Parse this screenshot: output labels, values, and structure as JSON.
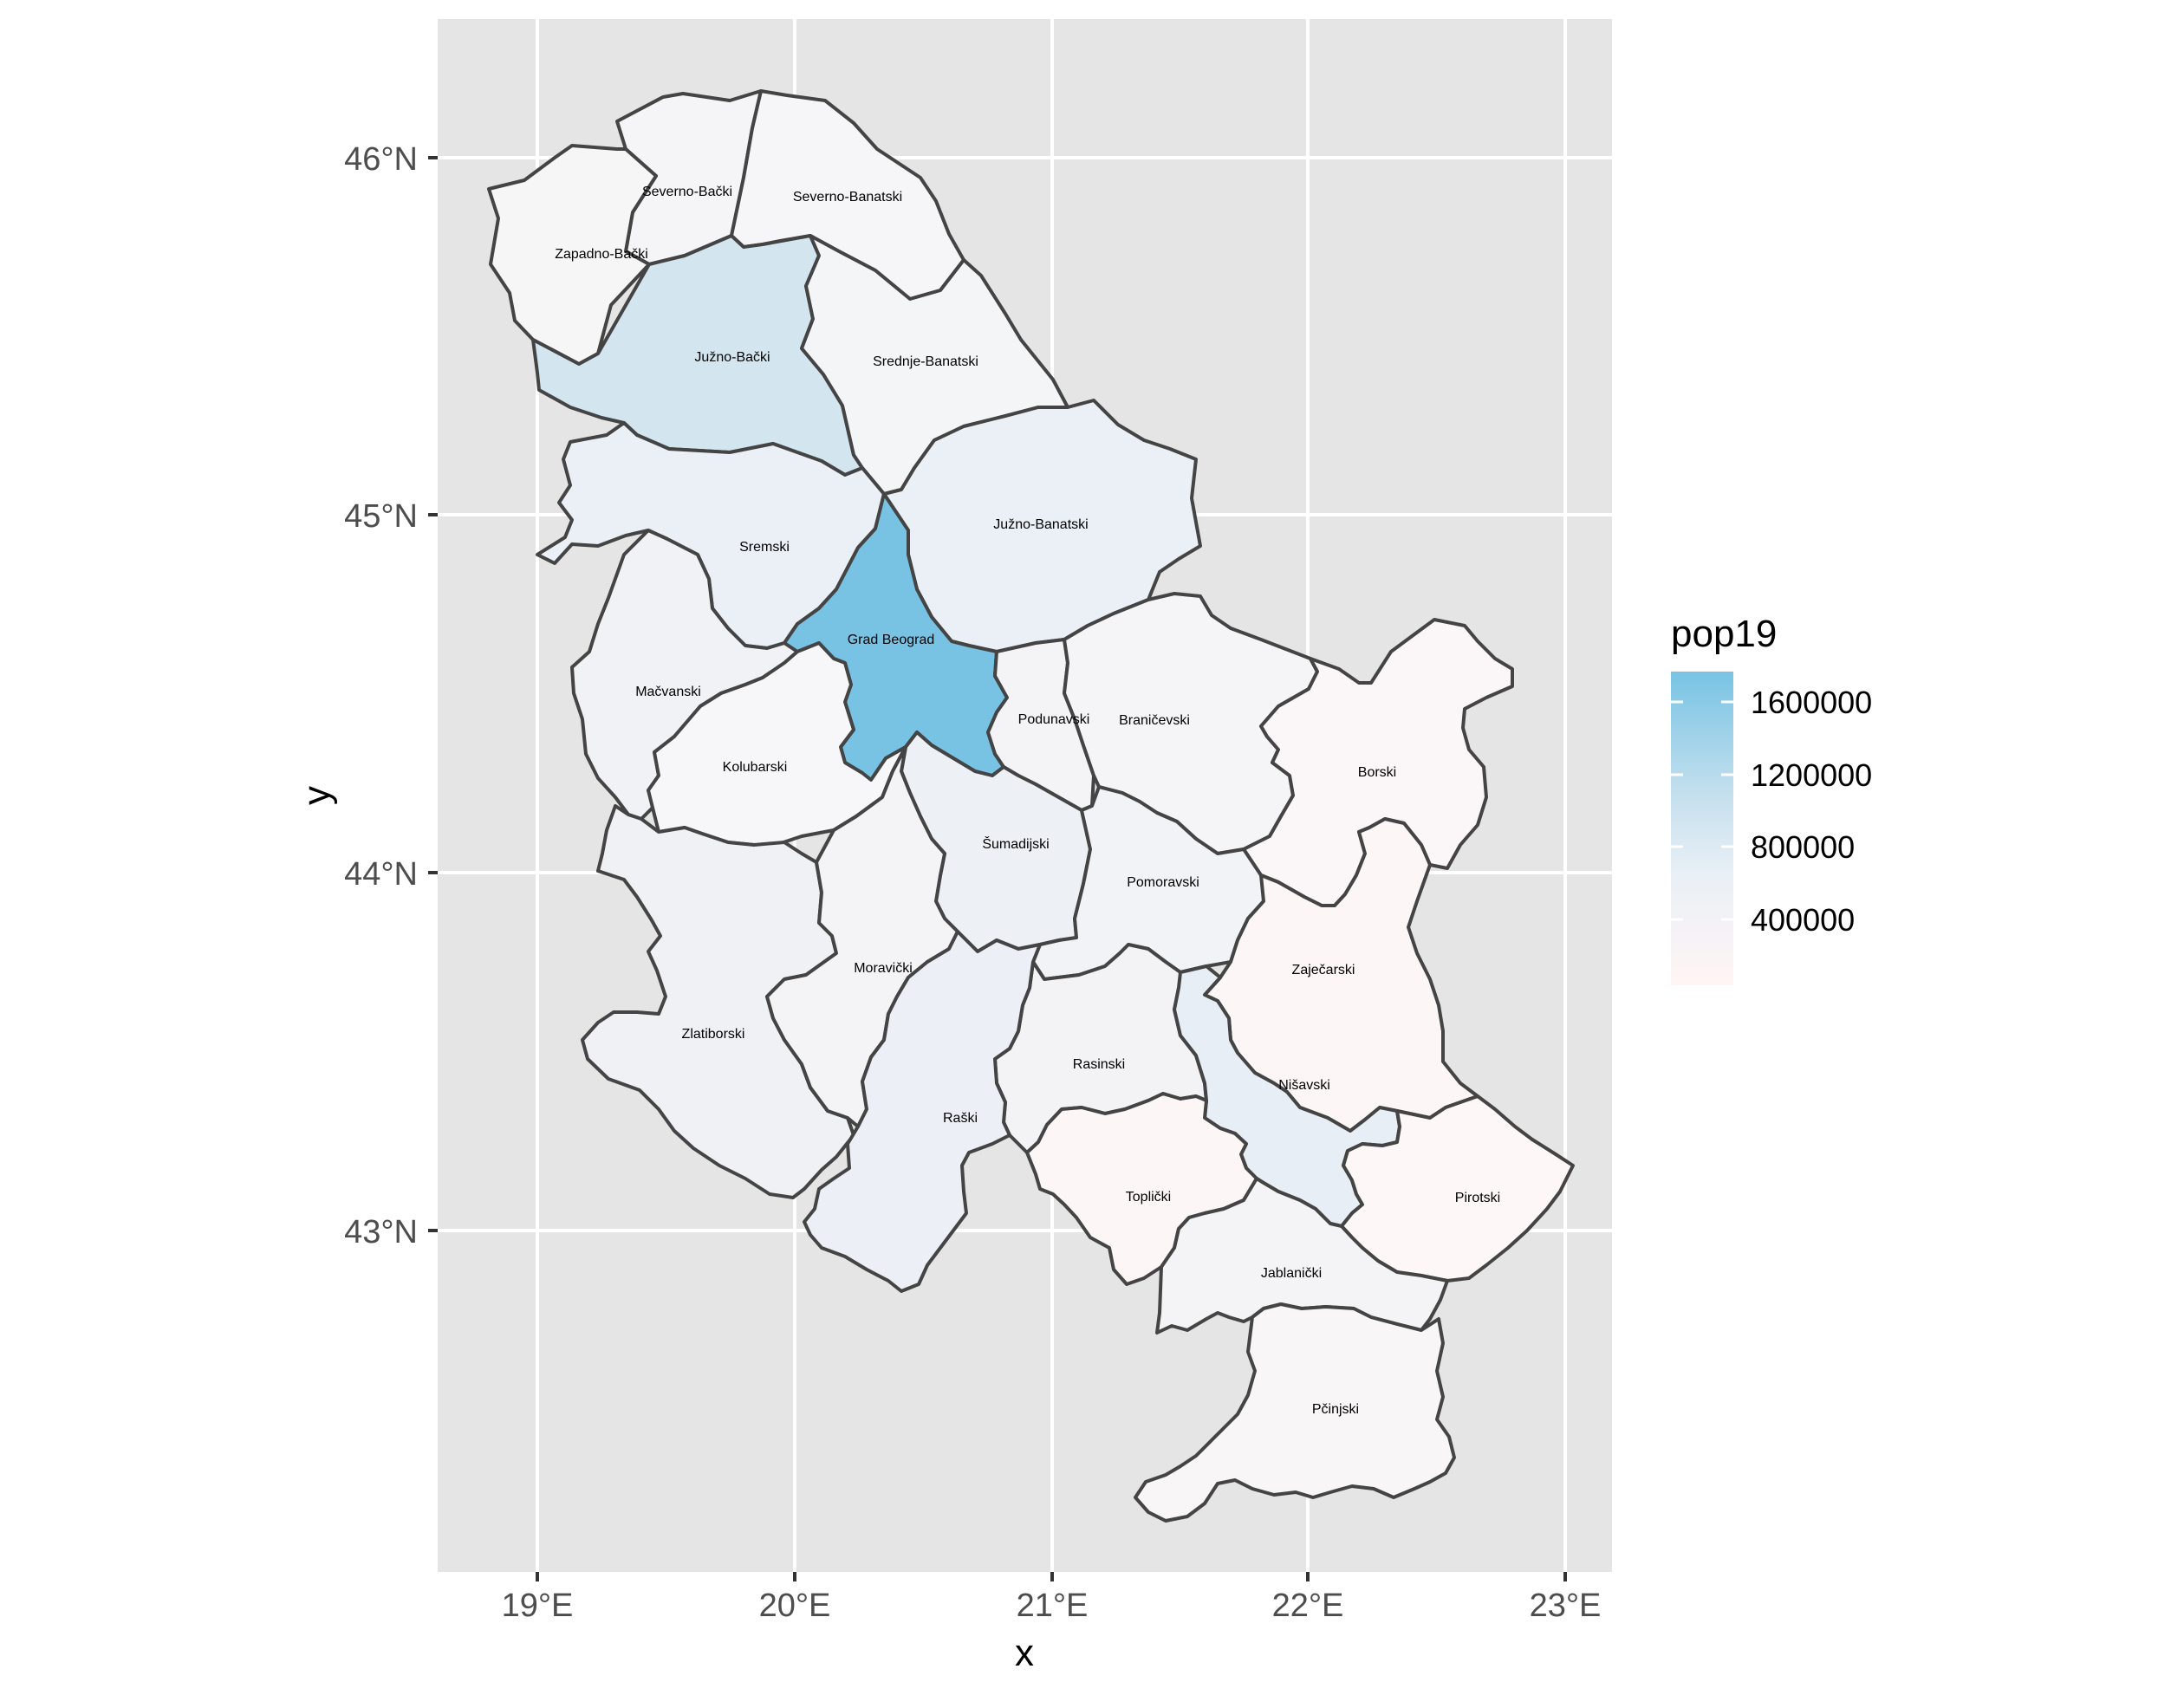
{
  "map": {
    "x_axis_title": "x",
    "y_axis_title": "y",
    "x_tick_labels": [
      "19°E",
      "20°E",
      "21°E",
      "22°E",
      "23°E"
    ],
    "y_tick_labels": [
      "46°N",
      "45°N",
      "44°N",
      "43°N"
    ],
    "panel_background": "#e5e5e5",
    "grid_color": "#ffffff",
    "outline_color": "#444444",
    "fill_low_color": "#fff5f5",
    "fill_high_color": "#78c3e4"
  },
  "legend": {
    "title": "pop19",
    "tick_labels": [
      "1600000",
      "1200000",
      "800000",
      "400000"
    ]
  },
  "regions": [
    {
      "key": "severno-backi",
      "label": "Severno-Bački",
      "fill": "#f5f5f7"
    },
    {
      "key": "severno-banatski",
      "label": "Severno-Banatski",
      "fill": "#f6f6f8"
    },
    {
      "key": "zapadno-backi",
      "label": "Zapadno-Bački",
      "fill": "#f6f6f7"
    },
    {
      "key": "juzno-backi",
      "label": "Južno-Bački",
      "fill": "#d3e6f0"
    },
    {
      "key": "srednje-banatski",
      "label": "Srednje-Banatski",
      "fill": "#f4f5f7"
    },
    {
      "key": "sremski",
      "label": "Sremski",
      "fill": "#ebf0f6"
    },
    {
      "key": "juzno-banatski",
      "label": "Južno-Banatski",
      "fill": "#eaf0f6"
    },
    {
      "key": "grad-beograd",
      "label": "Grad Beograd",
      "fill": "#78c3e4"
    },
    {
      "key": "macvanski",
      "label": "Mačvanski",
      "fill": "#f1f2f5"
    },
    {
      "key": "kolubarski",
      "label": "Kolubarski",
      "fill": "#f7f6f8"
    },
    {
      "key": "podunavski",
      "label": "Podunavski",
      "fill": "#f4f4f6"
    },
    {
      "key": "branicevski",
      "label": "Braničevski",
      "fill": "#f5f4f6"
    },
    {
      "key": "borski",
      "label": "Borski",
      "fill": "#fbf6f7"
    },
    {
      "key": "sumadijski",
      "label": "Šumadijski",
      "fill": "#edf0f5"
    },
    {
      "key": "pomoravski",
      "label": "Pomoravski",
      "fill": "#f2f3f6"
    },
    {
      "key": "zlatiborski",
      "label": "Zlatiborski",
      "fill": "#eff1f5"
    },
    {
      "key": "moravicki",
      "label": "Moravički",
      "fill": "#f4f4f6"
    },
    {
      "key": "zajecarski",
      "label": "Zaječarski",
      "fill": "#fcf6f6"
    },
    {
      "key": "rasinski",
      "label": "Rasinski",
      "fill": "#f3f3f6"
    },
    {
      "key": "nisavski",
      "label": "Nišavski",
      "fill": "#e8eef5"
    },
    {
      "key": "raski",
      "label": "Raški",
      "fill": "#ecf0f6"
    },
    {
      "key": "toplicki",
      "label": "Toplički",
      "fill": "#fdf6f6"
    },
    {
      "key": "pirotski",
      "label": "Pirotski",
      "fill": "#fef7f7"
    },
    {
      "key": "jablanicki",
      "label": "Jablanički",
      "fill": "#f4f4f6"
    },
    {
      "key": "pcinjski",
      "label": "Pčinjski",
      "fill": "#f9f6f7"
    }
  ]
}
